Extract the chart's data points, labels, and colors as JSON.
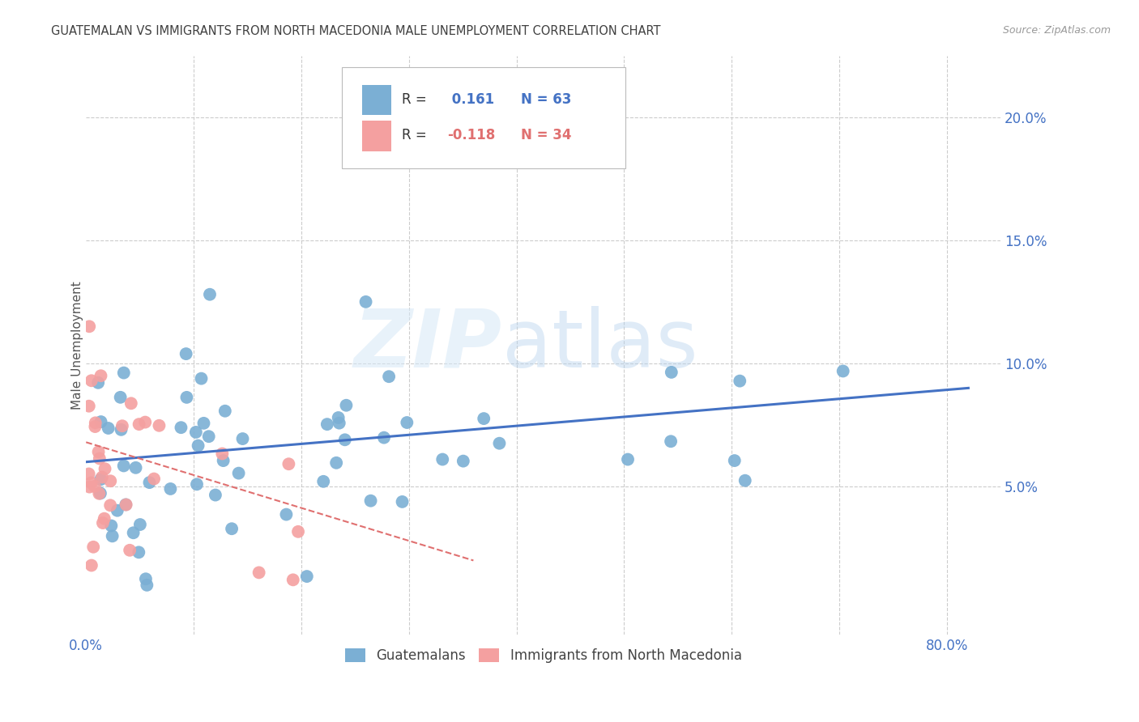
{
  "title": "GUATEMALAN VS IMMIGRANTS FROM NORTH MACEDONIA MALE UNEMPLOYMENT CORRELATION CHART",
  "source": "Source: ZipAtlas.com",
  "ylabel": "Male Unemployment",
  "xlim": [
    0.0,
    0.85
  ],
  "ylim": [
    -0.01,
    0.225
  ],
  "yticks": [
    0.0,
    0.05,
    0.1,
    0.15,
    0.2
  ],
  "ytick_labels": [
    "",
    "5.0%",
    "10.0%",
    "15.0%",
    "20.0%"
  ],
  "xticks": [
    0.0,
    0.1,
    0.2,
    0.3,
    0.4,
    0.5,
    0.6,
    0.7,
    0.8
  ],
  "xtick_labels": [
    "0.0%",
    "",
    "",
    "",
    "",
    "",
    "",
    "",
    "80.0%"
  ],
  "blue_color": "#7BAFD4",
  "pink_color": "#F4A0A0",
  "line_blue": "#4472C4",
  "line_pink": "#F4A0A0",
  "title_color": "#404040",
  "axis_label_color": "#4472C4",
  "tick_color": "#4472C4",
  "blue_trend_x0": 0.0,
  "blue_trend_y0": 0.06,
  "blue_trend_x1": 0.82,
  "blue_trend_y1": 0.09,
  "pink_trend_x0": 0.0,
  "pink_trend_y0": 0.068,
  "pink_trend_x1": 0.36,
  "pink_trend_y1": 0.02,
  "legend_r1": "R = ",
  "legend_v1": " 0.161",
  "legend_n1": "N = 63",
  "legend_r2": "R = ",
  "legend_v2": "-0.118",
  "legend_n2": "N = 34"
}
